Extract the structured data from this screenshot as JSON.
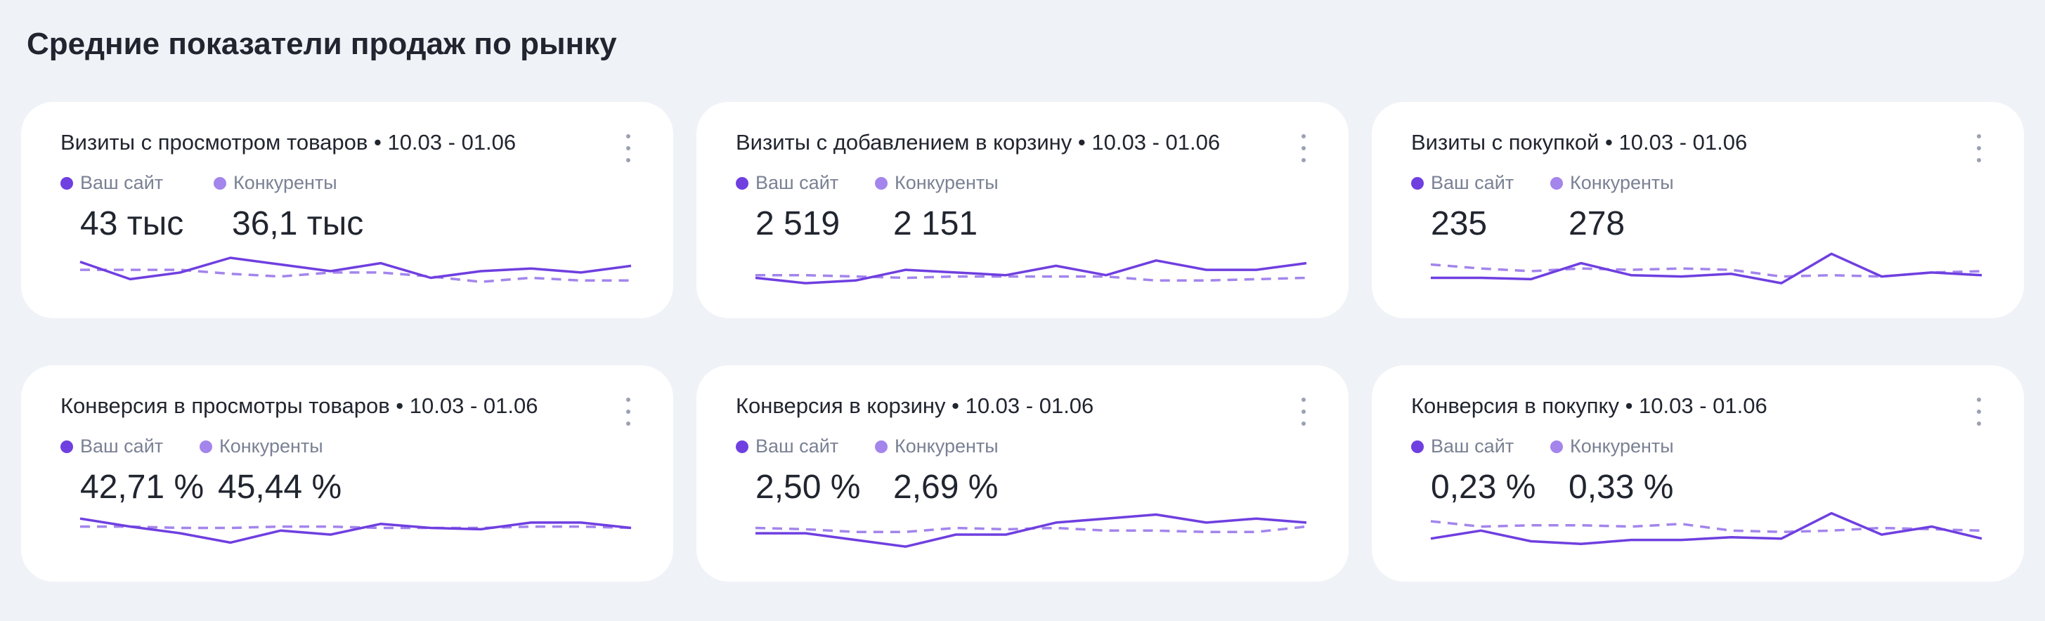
{
  "page_title": "Средние показатели продаж по рынку",
  "colors": {
    "own": "#6f3fe0",
    "competitors": "#a385ec"
  },
  "legend": {
    "own": "Ваш сайт",
    "competitors": "Конкуренты"
  },
  "cards": [
    {
      "title": "Визиты с просмотром товаров • 10.03 - 01.06",
      "own_value": "43 тыс",
      "comp_value": "36,1 тыс",
      "chart_data": {
        "type": "line",
        "series": [
          {
            "values": [
              17,
              4,
              9,
              20,
              15,
              10,
              16,
              5,
              10,
              12,
              9,
              14
            ]
          },
          {
            "values": [
              11,
              11,
              11,
              8,
              6,
              9,
              9,
              6,
              2,
              5,
              3,
              3
            ]
          }
        ]
      }
    },
    {
      "title": "Визиты с добавлением в корзину • 10.03 - 01.06",
      "own_value": "2 519",
      "comp_value": "2 151",
      "chart_data": {
        "type": "line",
        "series": [
          {
            "values": [
              5,
              1,
              3,
              11,
              9,
              7,
              14,
              7,
              18,
              11,
              11,
              16
            ]
          },
          {
            "values": [
              7,
              7,
              6,
              5,
              6,
              6,
              6,
              6,
              3,
              3,
              4,
              5
            ]
          }
        ]
      }
    },
    {
      "title": "Визиты с покупкой • 10.03 - 01.06",
      "own_value": "235",
      "comp_value": "278",
      "chart_data": {
        "type": "line",
        "series": [
          {
            "values": [
              5,
              5,
              4,
              16,
              7,
              6,
              8,
              1,
              23,
              6,
              9,
              7
            ]
          },
          {
            "values": [
              15,
              12,
              10,
              12,
              11,
              12,
              11,
              6,
              7,
              6,
              9,
              10
            ]
          }
        ]
      }
    },
    {
      "title": "Конверсия в просмотры товаров • 10.03 - 01.06",
      "own_value": "42,71 %",
      "comp_value": "45,44 %",
      "chart_data": {
        "type": "line",
        "series": [
          {
            "values": [
              22,
              16,
              11,
              4,
              13,
              10,
              18,
              15,
              14,
              19,
              19,
              15
            ]
          },
          {
            "values": [
              16,
              16,
              15,
              15,
              16,
              16,
              15,
              15,
              15,
              16,
              16,
              15
            ]
          }
        ]
      }
    },
    {
      "title": "Конверсия в корзину • 10.03 - 01.06",
      "own_value": "2,50 %",
      "comp_value": "2,69 %",
      "chart_data": {
        "type": "line",
        "series": [
          {
            "values": [
              11,
              11,
              6,
              1,
              10,
              10,
              19,
              22,
              25,
              19,
              22,
              19
            ]
          },
          {
            "values": [
              15,
              14,
              12,
              12,
              15,
              14,
              15,
              13,
              13,
              12,
              12,
              16
            ]
          }
        ]
      }
    },
    {
      "title": "Конверсия в покупку • 10.03 - 01.06",
      "own_value": "0,23 %",
      "comp_value": "0,33 %",
      "chart_data": {
        "type": "line",
        "series": [
          {
            "values": [
              7,
              13,
              5,
              3,
              6,
              6,
              8,
              7,
              26,
              10,
              16,
              7
            ]
          },
          {
            "values": [
              20,
              16,
              17,
              17,
              16,
              18,
              13,
              12,
              13,
              15,
              14,
              13
            ]
          }
        ]
      }
    }
  ]
}
